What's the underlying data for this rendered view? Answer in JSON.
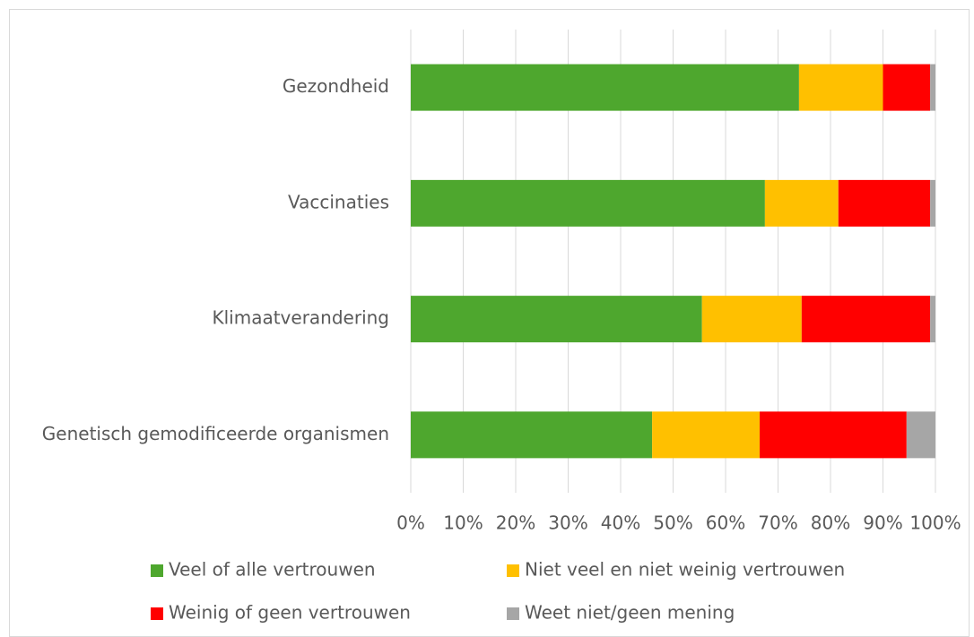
{
  "chart_data": {
    "type": "stacked_bar_horizontal",
    "categories": [
      "Gezondheid",
      "Vaccinaties",
      "Klimaatverandering",
      "Genetisch gemodificeerde organismen"
    ],
    "series": [
      {
        "name": "Veel of alle vertrouwen",
        "color": "#4ea72e",
        "values": [
          74,
          67.5,
          55.5,
          46
        ]
      },
      {
        "name": "Niet veel en niet weinig vertrouwen",
        "color": "#ffc000",
        "values": [
          16,
          14,
          19,
          20.5
        ]
      },
      {
        "name": "Weinig of geen vertrouwen",
        "color": "#ff0000",
        "values": [
          9,
          17.5,
          24.5,
          28
        ]
      },
      {
        "name": "Weet niet/geen mening",
        "color": "#a6a6a6",
        "values": [
          1,
          1,
          1,
          5.5
        ]
      }
    ],
    "xlim": [
      0,
      100
    ],
    "xticks": [
      {
        "value": 0,
        "label": "0%"
      },
      {
        "value": 10,
        "label": "10%"
      },
      {
        "value": 20,
        "label": "20%"
      },
      {
        "value": 30,
        "label": "30%"
      },
      {
        "value": 40,
        "label": "40%"
      },
      {
        "value": 50,
        "label": "50%"
      },
      {
        "value": 60,
        "label": "60%"
      },
      {
        "value": 70,
        "label": "70%"
      },
      {
        "value": 80,
        "label": "80%"
      },
      {
        "value": 90,
        "label": "90%"
      },
      {
        "value": 100,
        "label": "100%"
      }
    ],
    "grid": true,
    "legend": "bottom"
  }
}
